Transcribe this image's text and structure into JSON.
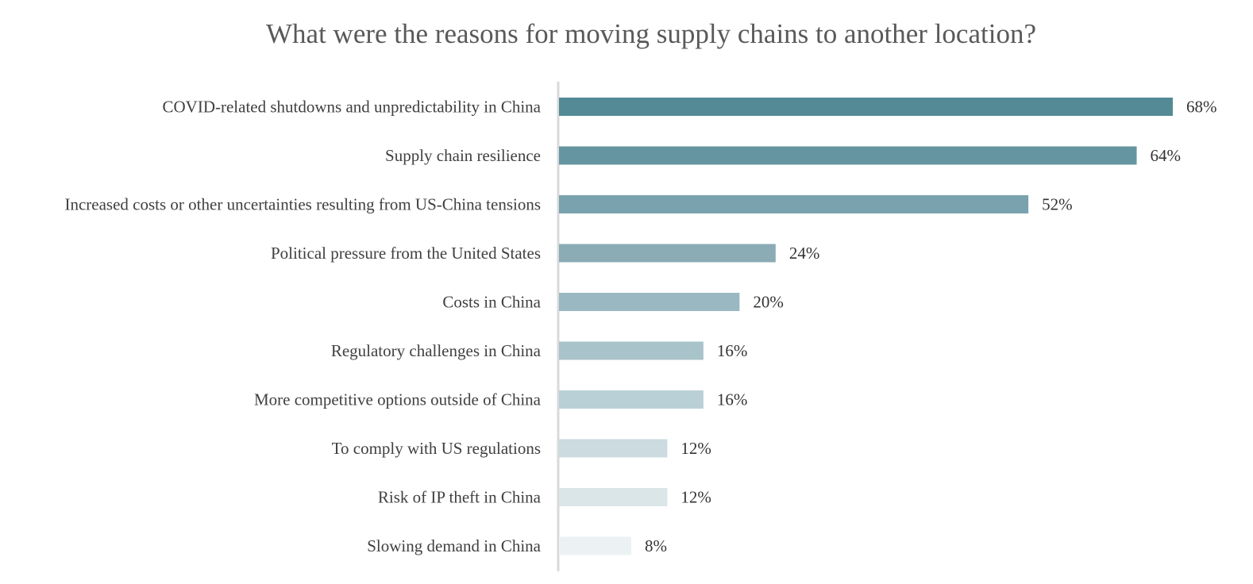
{
  "chart_data": {
    "type": "bar",
    "orientation": "horizontal",
    "title": "What were the reasons for moving supply chains to another location?",
    "xlabel": "",
    "ylabel": "",
    "xlim": [
      0,
      68
    ],
    "grid": false,
    "legend": "none",
    "categories": [
      "COVID-related shutdowns and unpredictability in China",
      "Supply chain resilience",
      "Increased costs or other uncertainties resulting from US-China tensions",
      "Political pressure from the United States",
      "Costs in China",
      "Regulatory challenges in China",
      "More competitive options outside of China",
      "To comply with US regulations",
      "Risk of IP theft in China",
      "Slowing demand in China"
    ],
    "values": [
      68,
      64,
      52,
      24,
      20,
      16,
      16,
      12,
      12,
      8
    ],
    "value_labels": [
      "68%",
      "64%",
      "52%",
      "24%",
      "20%",
      "16%",
      "16%",
      "12%",
      "12%",
      "8%"
    ],
    "bar_colors": [
      "#538a96",
      "#6595a1",
      "#79a2ae",
      "#8babb5",
      "#99b8c1",
      "#a9c3ca",
      "#b9d0d6",
      "#cbdbe0",
      "#dbe6e9",
      "#ecf2f4"
    ],
    "axis_color": "#d9d9d9"
  }
}
